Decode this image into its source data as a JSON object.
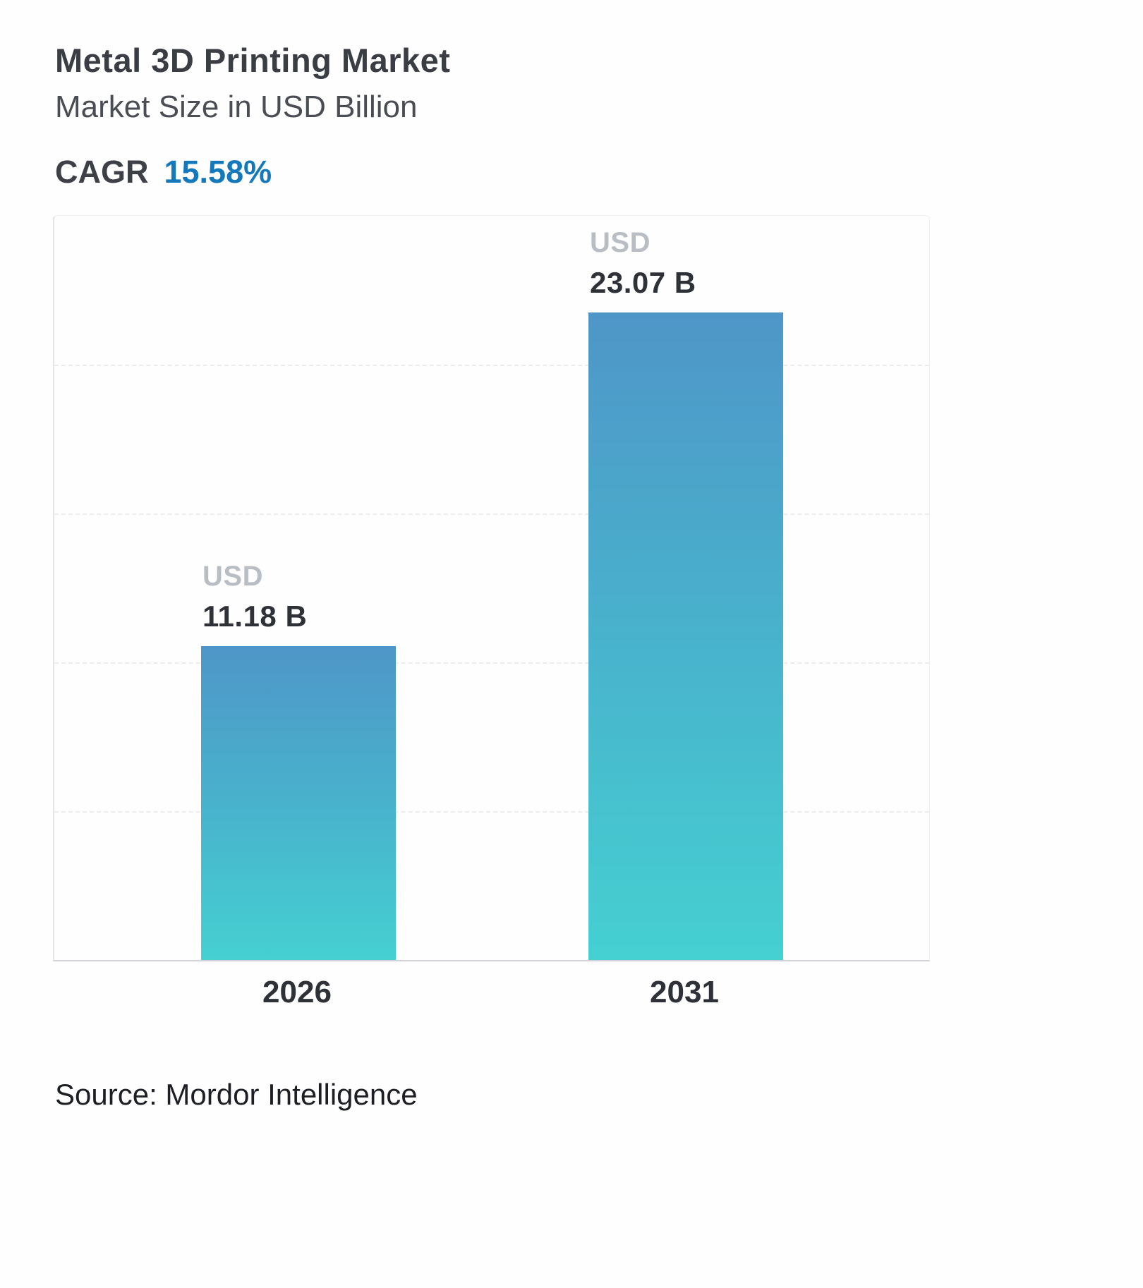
{
  "header": {
    "title": "Metal 3D Printing Market",
    "subtitle": "Market Size in USD Billion",
    "cagr_label": "CAGR",
    "cagr_value": "15.58%"
  },
  "chart_data": {
    "type": "bar",
    "title": "Metal 3D Printing Market",
    "subtitle": "Market Size in USD Billion",
    "categories": [
      "2026",
      "2031"
    ],
    "values": [
      11.18,
      23.07
    ],
    "unit_prefix": "USD",
    "value_labels": [
      "11.18 B",
      "23.07 B"
    ],
    "ylim": [
      0,
      26.5
    ],
    "grid": "horizontal-dashed",
    "legend": "none",
    "y_tick_labels": "none",
    "bar_gradient_top": "#4E96C8",
    "bar_gradient_bottom": "#45D0D1"
  },
  "footer": {
    "source": "Source: Mordor Intelligence"
  },
  "colors": {
    "cagr_blue": "#1478BD",
    "unit_label_gray": "#B9BDC4",
    "text_dark": "#2E3138"
  }
}
